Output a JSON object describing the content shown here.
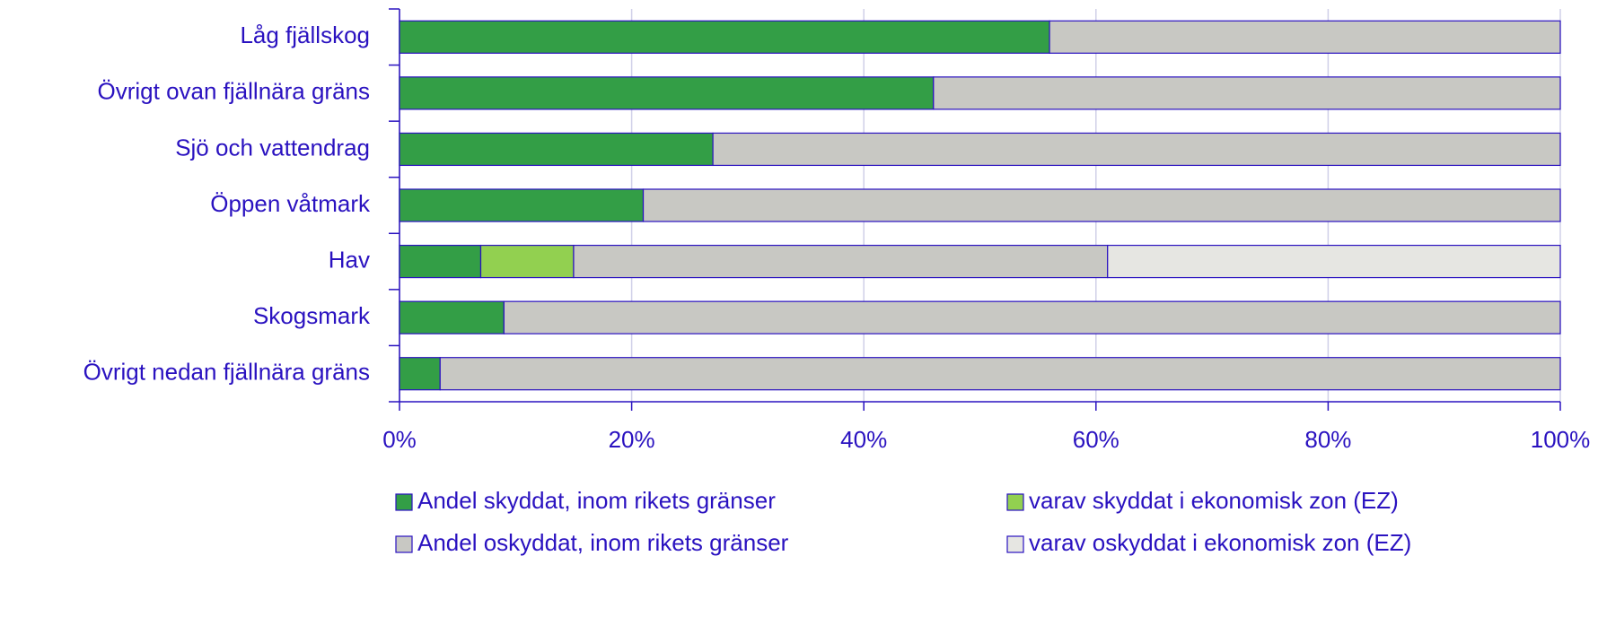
{
  "chart_data": {
    "type": "stacked-bar-horizontal",
    "categories": [
      "Låg fjällskog",
      "Övrigt ovan fjällnära gräns",
      "Sjö och vattendrag",
      "Öppen våtmark",
      "Hav",
      "Skogsmark",
      "Övrigt nedan fjällnära gräns"
    ],
    "series": [
      {
        "name": "Andel skyddat, inom rikets gränser",
        "color": "#339e46",
        "values": [
          56,
          46,
          27,
          21,
          7,
          9,
          3.5
        ]
      },
      {
        "name": "varav skyddat i ekonomisk zon (EZ)",
        "color": "#92d050",
        "values": [
          0,
          0,
          0,
          0,
          8,
          0,
          0
        ]
      },
      {
        "name": "Andel oskyddat, inom rikets gränser",
        "color": "#c8c8c3",
        "values": [
          44,
          54,
          73,
          79,
          46,
          91,
          96.5
        ]
      },
      {
        "name": "varav oskyddat i ekonomisk zon (EZ)",
        "color": "#e6e6e2",
        "values": [
          0,
          0,
          0,
          0,
          39,
          0,
          0
        ]
      }
    ],
    "xlim": [
      0,
      100
    ],
    "xticks": [
      {
        "value": 0,
        "label": "0%"
      },
      {
        "value": 20,
        "label": "20%"
      },
      {
        "value": 40,
        "label": "40%"
      },
      {
        "value": 60,
        "label": "60%"
      },
      {
        "value": 80,
        "label": "80%"
      },
      {
        "value": 100,
        "label": "100%"
      }
    ],
    "grid": true
  }
}
